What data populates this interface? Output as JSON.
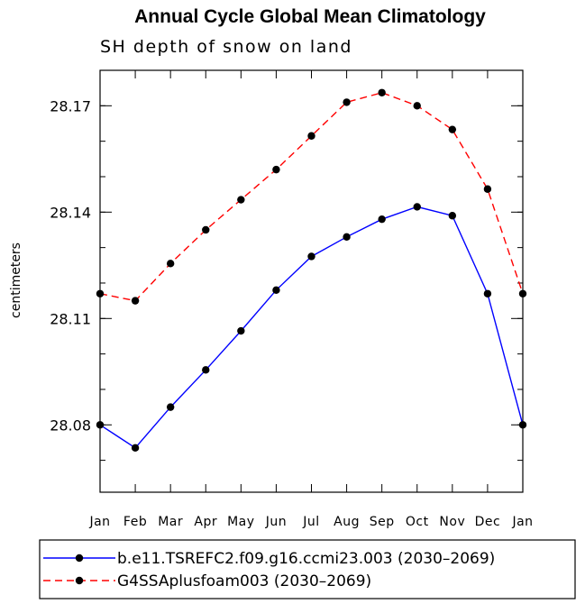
{
  "chart_data": {
    "type": "line",
    "title": "Annual Cycle Global Mean Climatology",
    "subtitle": "SH depth of snow on land",
    "xlabel": "",
    "ylabel": "centimeters",
    "categories": [
      "Jan",
      "Feb",
      "Mar",
      "Apr",
      "May",
      "Jun",
      "Jul",
      "Aug",
      "Sep",
      "Oct",
      "Nov",
      "Dec",
      "Jan"
    ],
    "ylim": [
      28.061,
      28.18
    ],
    "yticks": [
      28.08,
      28.11,
      28.14,
      28.17
    ],
    "ytick_labels": [
      "28.08",
      "28.11",
      "28.14",
      "28.17"
    ],
    "yminor_step": 0.01,
    "grid": false,
    "legend_position": "bottom",
    "series": [
      {
        "name": "b.e11.TSREFC2.f09.g16.ccmi23.003 (2030–2069)",
        "color": "#0000ff",
        "dash": "solid",
        "values": [
          28.08,
          28.0735,
          28.085,
          28.0955,
          28.1065,
          28.118,
          28.1275,
          28.133,
          28.138,
          28.1415,
          28.139,
          28.117,
          28.08
        ]
      },
      {
        "name": "G4SSAplusfoam003 (2030–2069)",
        "color": "#ff0000",
        "dash": "dashed",
        "values": [
          28.117,
          28.115,
          28.1255,
          28.135,
          28.1435,
          28.152,
          28.1615,
          28.171,
          28.1737,
          28.17,
          28.1633,
          28.1465,
          28.117
        ]
      }
    ]
  }
}
